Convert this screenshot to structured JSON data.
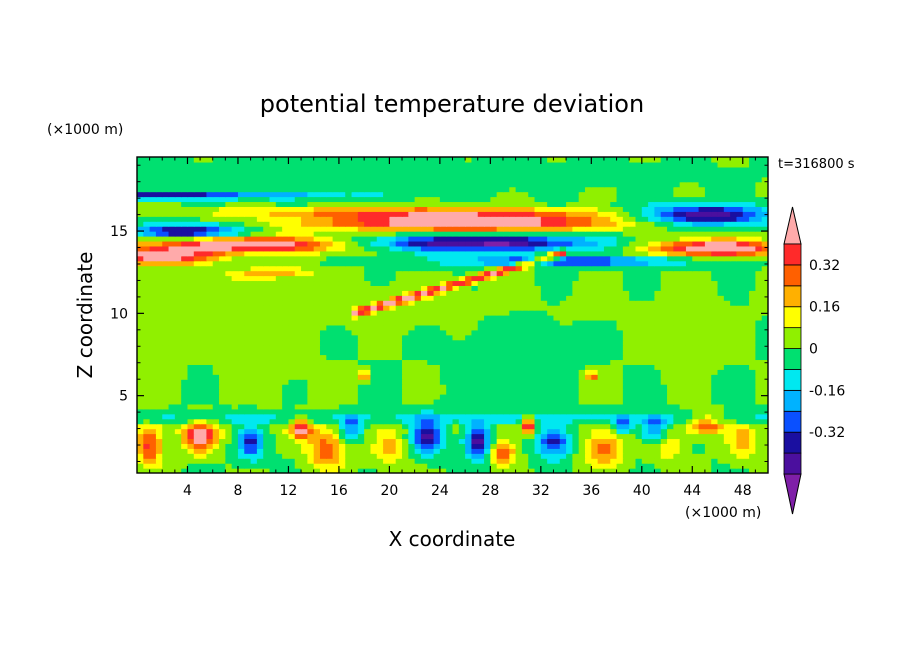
{
  "chart_data": {
    "type": "heatmap",
    "title": "potential temperature deviation",
    "xlabel": "X coordinate",
    "ylabel": "Z coordinate",
    "x_unit": "(×1000 m)",
    "y_unit": "(×1000 m)",
    "time_label": "t=316800 s",
    "xlim": [
      0,
      50
    ],
    "ylim": [
      0.3,
      19.5
    ],
    "x_ticks": [
      4,
      8,
      12,
      16,
      20,
      24,
      28,
      32,
      36,
      40,
      44,
      48
    ],
    "y_ticks": [
      5,
      10,
      15
    ],
    "colorbar": {
      "levels": [
        -0.48,
        -0.4,
        -0.32,
        -0.24,
        -0.16,
        -0.08,
        0,
        0.08,
        0.16,
        0.24,
        0.32,
        0.4
      ],
      "colors": [
        "#7f1fa8",
        "#4b0f9e",
        "#1a0fa0",
        "#0a50ff",
        "#00b2ff",
        "#00e8f0",
        "#00e070",
        "#90f000",
        "#ffff00",
        "#ffb000",
        "#ff6000",
        "#ff2a2a",
        "#ffaaaa"
      ],
      "tick_labels": [
        "0.32",
        "0.16",
        "0",
        "-0.16",
        "-0.32"
      ],
      "tick_values": [
        0.32,
        0.16,
        0,
        -0.16,
        -0.32
      ]
    }
  }
}
